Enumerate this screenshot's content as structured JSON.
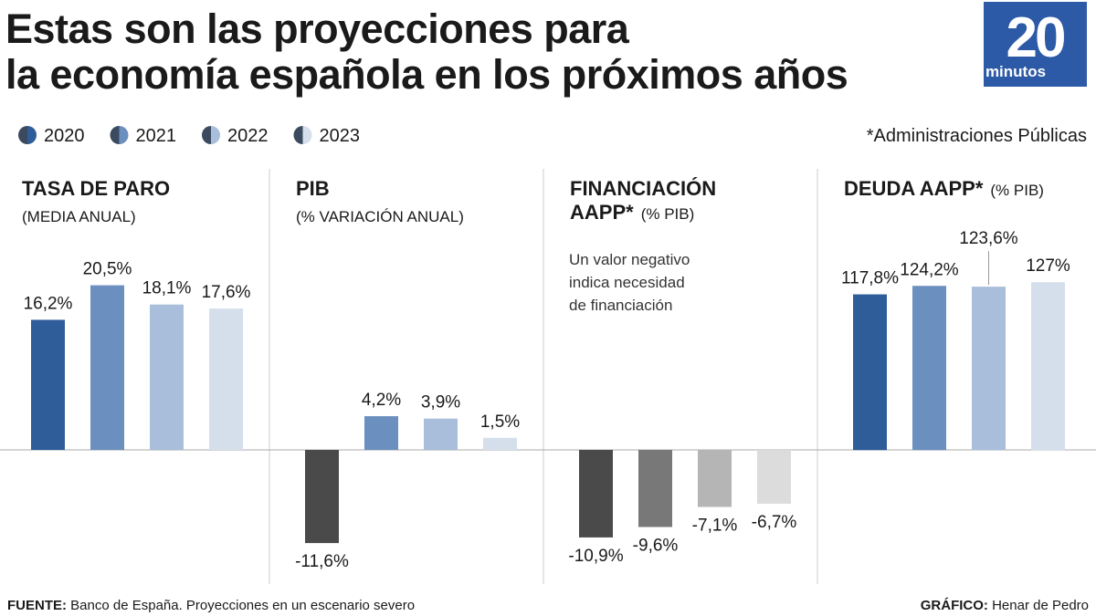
{
  "title": [
    "Estas son las proyecciones para",
    "la economía española en los próximos años"
  ],
  "logo": {
    "number": "20",
    "word": "minutos"
  },
  "legend": {
    "labels": [
      "2020",
      "2021",
      "2022",
      "2023"
    ],
    "colors": [
      "#2e5d9a",
      "#6b8fbf",
      "#a8bedb",
      "#d5dfec"
    ]
  },
  "footnote": "*Administraciones Públicas",
  "chart_data": [
    {
      "type": "bar",
      "title": [
        "TASA DE PARO"
      ],
      "subtitle": "(MEDIA ANUAL)",
      "values": [
        16.2,
        20.5,
        18.1,
        17.6
      ],
      "value_labels": [
        "16,2%",
        "20,5%",
        "18,1%",
        "17,6%"
      ],
      "colors": [
        "#2e5d9a",
        "#6b8fbf",
        "#a8bedb",
        "#d5dfec"
      ],
      "ylim": [
        -15,
        25
      ]
    },
    {
      "type": "bar",
      "title": [
        "PIB"
      ],
      "subtitle": "(% VARIACIÓN ANUAL)",
      "values": [
        -11.6,
        4.2,
        3.9,
        1.5
      ],
      "value_labels": [
        "-11,6%",
        "4,2%",
        "3,9%",
        "1,5%"
      ],
      "colors": [
        "#4a4a4a",
        "#6b8fbf",
        "#a8bedb",
        "#d5dfec"
      ],
      "ylim": [
        -15,
        25
      ]
    },
    {
      "type": "bar",
      "title": [
        "FINANCIACIÓN",
        "AAPP*"
      ],
      "subtitle": "(% PIB)",
      "annotation": [
        "Un valor negativo",
        "indica necesidad",
        "de financiación"
      ],
      "values": [
        -10.9,
        -9.6,
        -7.1,
        -6.7
      ],
      "value_labels": [
        "-10,9%",
        "-9,6%",
        "-7,1%",
        "-6,7%"
      ],
      "colors": [
        "#4a4a4a",
        "#787878",
        "#b5b5b5",
        "#dcdcdc"
      ],
      "ylim": [
        -15,
        25
      ]
    },
    {
      "type": "bar",
      "title": [
        "DEUDA AAPP*"
      ],
      "subtitle": "(% PIB)",
      "values": [
        117.8,
        124.2,
        123.6,
        127
      ],
      "value_labels": [
        "117,8%",
        "124,2%",
        "123,6%",
        "127%"
      ],
      "colors": [
        "#2e5d9a",
        "#6b8fbf",
        "#a8bedb",
        "#d5dfec"
      ],
      "ylim": [
        -91,
        152
      ]
    }
  ],
  "source": {
    "label": "FUENTE:",
    "text": "Banco de España. Proyecciones en un escenario severo"
  },
  "credit": {
    "label": "GRÁFICO:",
    "text": "Henar de Pedro"
  }
}
